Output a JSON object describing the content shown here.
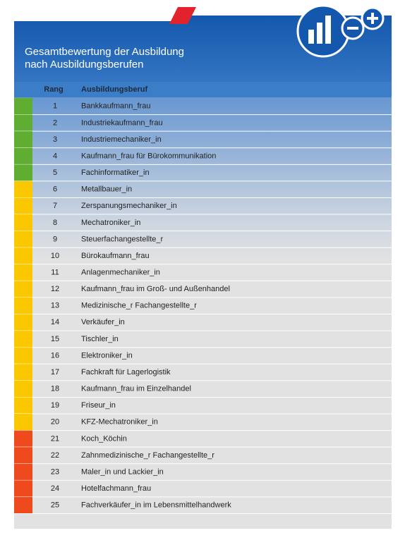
{
  "header": {
    "title_line1": "Gesamtbewertung der Ausbildung",
    "title_line2": "nach Ausbildungsberufen"
  },
  "table": {
    "columns": [
      "Rang",
      "Ausbildungsberuf"
    ],
    "rows": [
      {
        "rank": 1,
        "name": "Bankkaufmann_frau",
        "color": "#5fae32"
      },
      {
        "rank": 2,
        "name": "Industriekaufmann_frau",
        "color": "#5fae32"
      },
      {
        "rank": 3,
        "name": "Industriemechaniker_in",
        "color": "#5fae32"
      },
      {
        "rank": 4,
        "name": "Kaufmann_frau für Bürokommunikation",
        "color": "#5fae32"
      },
      {
        "rank": 5,
        "name": "Fachinformatiker_in",
        "color": "#5fae32"
      },
      {
        "rank": 6,
        "name": "Metallbauer_in",
        "color": "#fbc800"
      },
      {
        "rank": 7,
        "name": "Zerspanungsmechaniker_in",
        "color": "#fbc800"
      },
      {
        "rank": 8,
        "name": "Mechatroniker_in",
        "color": "#fbc800"
      },
      {
        "rank": 9,
        "name": "Steuerfachangestellte_r",
        "color": "#fbc800"
      },
      {
        "rank": 10,
        "name": "Bürokaufmann_frau",
        "color": "#fbc800"
      },
      {
        "rank": 11,
        "name": "Anlagenmechaniker_in",
        "color": "#fbc800"
      },
      {
        "rank": 12,
        "name": "Kaufmann_frau im Groß- und Außenhandel",
        "color": "#fbc800"
      },
      {
        "rank": 13,
        "name": "Medizinische_r Fachangestellte_r",
        "color": "#fbc800"
      },
      {
        "rank": 14,
        "name": "Verkäufer_in",
        "color": "#fbc800"
      },
      {
        "rank": 15,
        "name": "Tischler_in",
        "color": "#fbc800"
      },
      {
        "rank": 16,
        "name": "Elektroniker_in",
        "color": "#fbc800"
      },
      {
        "rank": 17,
        "name": "Fachkraft für Lagerlogistik",
        "color": "#fbc800"
      },
      {
        "rank": 18,
        "name": "Kaufmann_frau im Einzelhandel",
        "color": "#fbc800"
      },
      {
        "rank": 19,
        "name": "Friseur_in",
        "color": "#fbc800"
      },
      {
        "rank": 20,
        "name": "KFZ-Mechatroniker_in",
        "color": "#fbc800"
      },
      {
        "rank": 21,
        "name": "Koch_Köchin",
        "color": "#ee4a1e"
      },
      {
        "rank": 22,
        "name": "Zahnmedizinische_r Fachangestellte_r",
        "color": "#ee4a1e"
      },
      {
        "rank": 23,
        "name": "Maler_in und Lackier_in",
        "color": "#ee4a1e"
      },
      {
        "rank": 24,
        "name": "Hotelfachmann_frau",
        "color": "#ee4a1e"
      },
      {
        "rank": 25,
        "name": "Fachverkäufer_in im Lebensmittelhandwerk",
        "color": "#ee4a1e"
      }
    ]
  }
}
